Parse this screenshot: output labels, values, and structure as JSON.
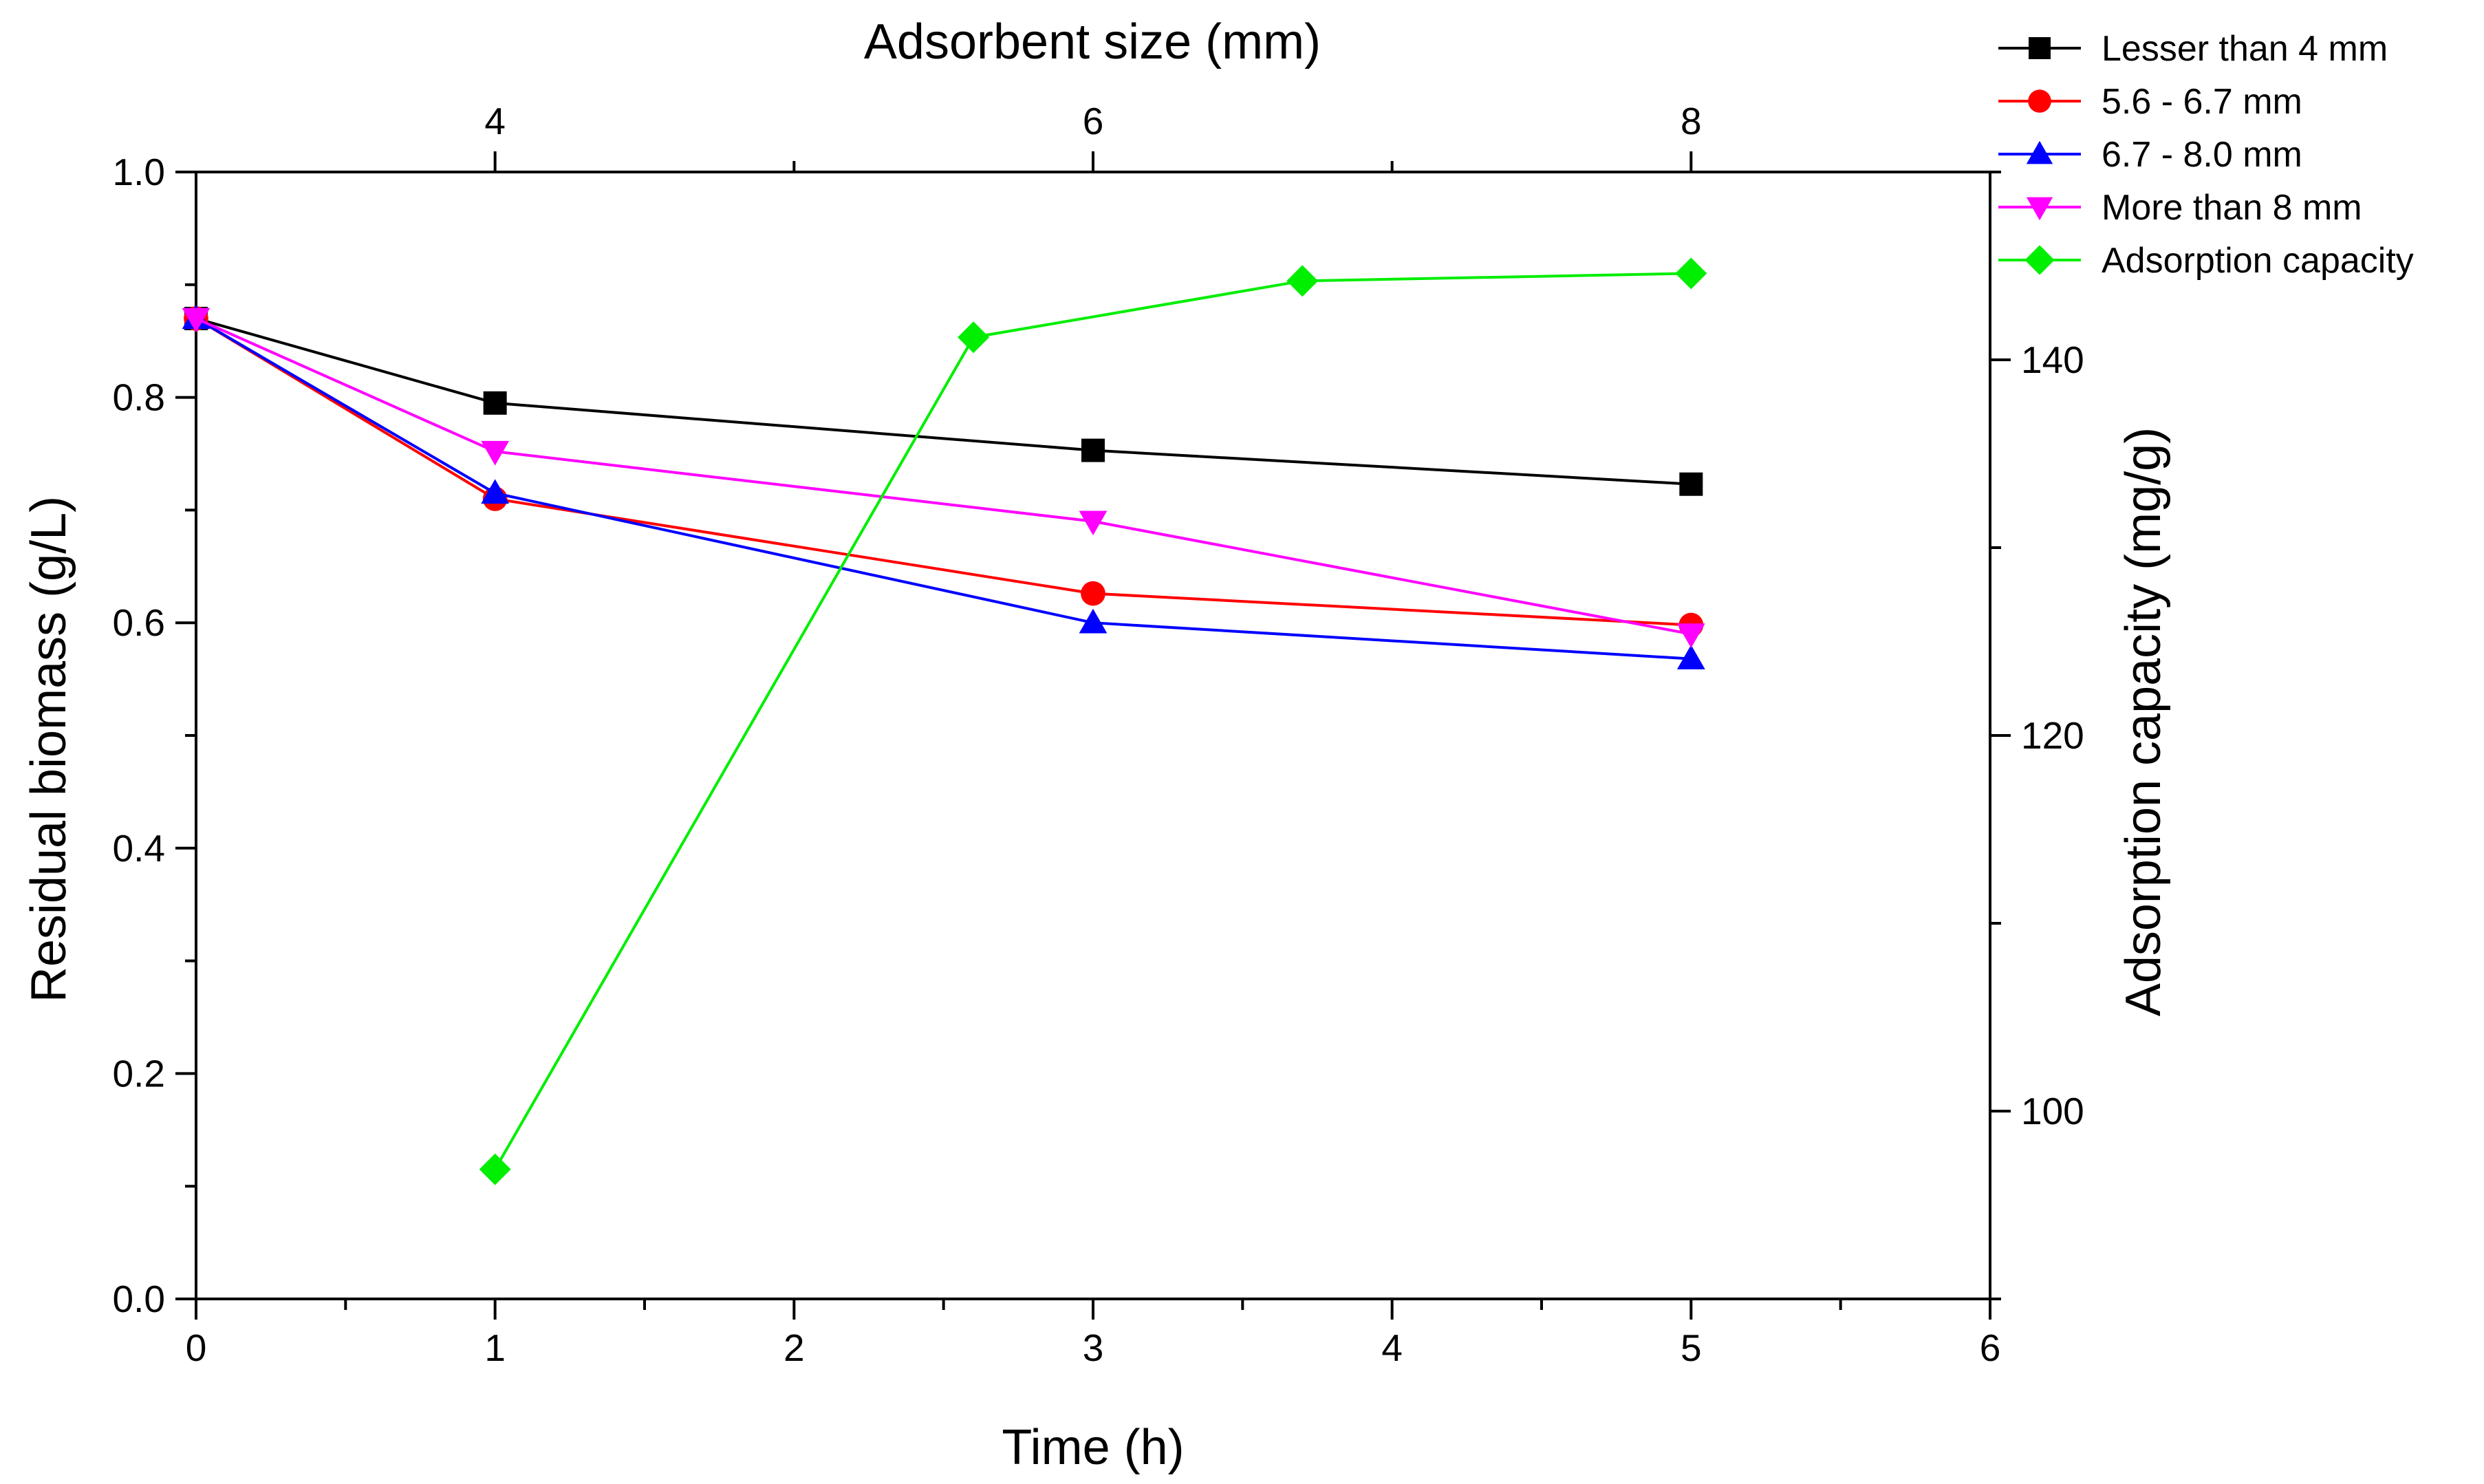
{
  "chart_data": {
    "type": "line",
    "xlabel_bottom": "Time (h)",
    "xlabel_top": "Adsorbent size (mm)",
    "ylabel_left": "Residual biomass (g/L)",
    "ylabel_right": "Adsorption capacity (mg/g)",
    "x_bottom_range": [
      0,
      6
    ],
    "x_bottom_ticks": [
      "0",
      "1",
      "2",
      "3",
      "4",
      "5",
      "6"
    ],
    "x_top_ticks": [
      {
        "label": "4",
        "at_time": 1
      },
      {
        "label": "6",
        "at_time": 3
      },
      {
        "label": "8",
        "at_time": 5
      }
    ],
    "y_left_range": [
      0,
      1.0
    ],
    "y_left_ticks": [
      "0.0",
      "0.2",
      "0.4",
      "0.6",
      "0.8",
      "1.0"
    ],
    "y_right_range": [
      90,
      150
    ],
    "y_right_ticks": [
      "100",
      "120",
      "140"
    ],
    "series": [
      {
        "name": "Lesser than 4 mm",
        "color": "#000000",
        "marker": "square",
        "axis": "left",
        "x": [
          0,
          1,
          3,
          5
        ],
        "y": [
          0.87,
          0.795,
          0.753,
          0.723
        ]
      },
      {
        "name": "5.6 - 6.7 mm",
        "color": "#ff0000",
        "marker": "circle",
        "axis": "left",
        "x": [
          0,
          1,
          3,
          5
        ],
        "y": [
          0.87,
          0.71,
          0.626,
          0.598
        ]
      },
      {
        "name": "6.7 - 8.0 mm",
        "color": "#0000ff",
        "marker": "triangle-up",
        "axis": "left",
        "x": [
          0,
          1,
          3,
          5
        ],
        "y": [
          0.87,
          0.715,
          0.6,
          0.568
        ]
      },
      {
        "name": "More than 8 mm",
        "color": "#ff00ff",
        "marker": "triangle-down",
        "axis": "left",
        "x": [
          0,
          1,
          3,
          5
        ],
        "y": [
          0.87,
          0.752,
          0.69,
          0.59
        ]
      },
      {
        "name": "Adsorption capacity",
        "color": "#00ee00",
        "marker": "diamond",
        "axis": "right",
        "x": [
          1,
          2.6,
          3.7,
          5
        ],
        "y": [
          96.9,
          141.2,
          144.2,
          144.6
        ]
      }
    ],
    "legend_position": "top-right"
  }
}
